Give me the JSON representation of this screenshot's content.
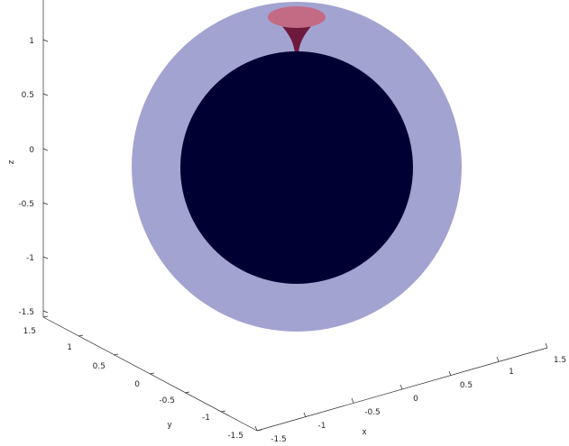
{
  "axes": {
    "z": {
      "title": "z",
      "ticks": [
        "1",
        "0.5",
        "0",
        "-0.5",
        "-1",
        "-1.5"
      ]
    },
    "y": {
      "title": "y",
      "ticks": [
        "1.5",
        "1",
        "0.5",
        "0",
        "-0.5",
        "-1",
        "-1.5"
      ]
    },
    "x": {
      "title": "x",
      "ticks": [
        "-1.5",
        "-1",
        "-0.5",
        "0",
        "0.5",
        "1",
        "1.5"
      ]
    }
  },
  "colors": {
    "outer_sphere": "#a3a3d1",
    "inner_sphere": "#000033",
    "funnel_top": "#c36b84",
    "funnel_neck": "#6e1a3c",
    "axis": "#262626"
  }
}
